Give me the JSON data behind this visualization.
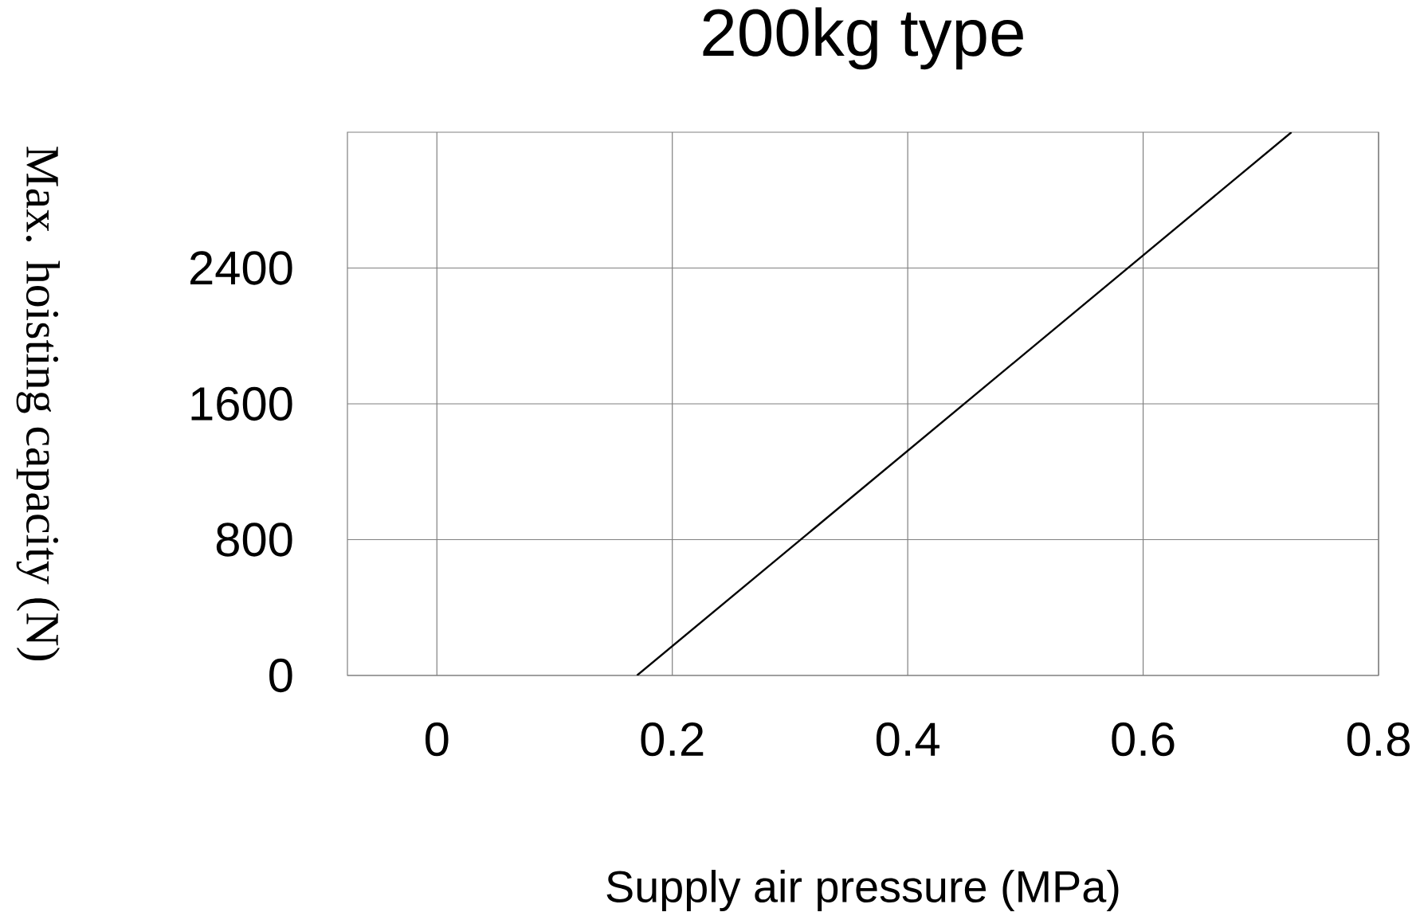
{
  "chart_data": {
    "type": "line",
    "title": "200kg type",
    "xlabel": "Supply air pressure (MPa)",
    "ylabel": "Max. hoisting capacity (N)",
    "x": [
      0.17,
      0.726
    ],
    "series": [
      {
        "color": "#000000",
        "values": [
          0,
          3200
        ]
      }
    ],
    "xlim": [
      -0.076,
      0.8
    ],
    "ylim": [
      0,
      3200
    ],
    "xticks": [
      0,
      0.2,
      0.4,
      0.6,
      0.8
    ],
    "yticks": [
      0,
      800,
      1600,
      2400
    ],
    "grid": true
  }
}
